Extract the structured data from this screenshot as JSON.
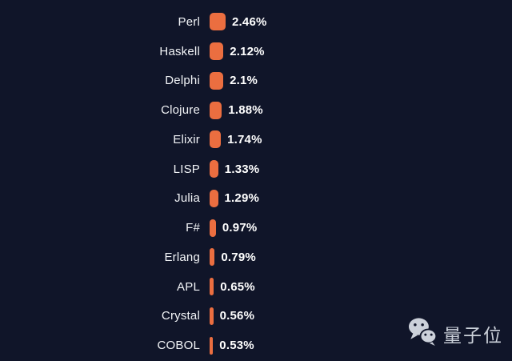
{
  "chart_data": {
    "type": "bar",
    "orientation": "horizontal",
    "title": "",
    "xlabel": "",
    "ylabel": "",
    "grid": false,
    "legend": null,
    "value_label_position": "right-of-bar",
    "categories": [
      "Perl",
      "Haskell",
      "Delphi",
      "Clojure",
      "Elixir",
      "LISP",
      "Julia",
      "F#",
      "Erlang",
      "APL",
      "Crystal",
      "COBOL"
    ],
    "values": [
      2.46,
      2.12,
      2.1,
      1.88,
      1.74,
      1.33,
      1.29,
      0.97,
      0.79,
      0.65,
      0.56,
      0.53
    ],
    "value_labels": [
      "2.46%",
      "2.12%",
      "2.1%",
      "1.88%",
      "1.74%",
      "1.33%",
      "1.29%",
      "0.97%",
      "0.79%",
      "0.65%",
      "0.56%",
      "0.53%"
    ],
    "xlim": [
      0,
      2.46
    ]
  },
  "colors": {
    "background": "#101529",
    "bar": "#eb6e40",
    "category_text": "#f2f4f7",
    "value_text": "#ffffff",
    "watermark": "#ccd1da"
  },
  "watermark": {
    "text": "量子位",
    "icon": "wechat-icon"
  }
}
